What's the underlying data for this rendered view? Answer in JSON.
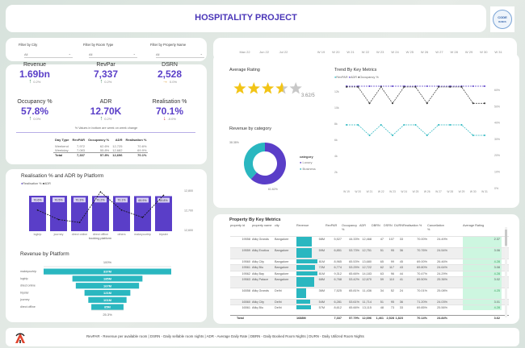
{
  "header": {
    "title": "HOSPITALITY PROJECT",
    "logo_text": "CODE BASICS"
  },
  "filters": [
    {
      "label": "Filter by City",
      "value": "All"
    },
    {
      "label": "Filter by Room Type",
      "value": "All"
    },
    {
      "label": "Filter by Property Name",
      "value": "All"
    }
  ],
  "date_slicer": {
    "months": [
      "May 22",
      "Jun 22",
      "Jul 22"
    ],
    "weeks": [
      "W 19",
      "W 20",
      "W 21",
      "W 22",
      "W 23",
      "W 24",
      "W 25",
      "W 26",
      "W 27",
      "W 28",
      "W 29",
      "W 30",
      "W 31"
    ]
  },
  "kpis": [
    {
      "label": "Revenue",
      "value": "1.69bn",
      "change": "0.2%",
      "trend": "up"
    },
    {
      "label": "RevPar",
      "value": "7,337",
      "change": "0.2%",
      "trend": "up"
    },
    {
      "label": "DSRN",
      "value": "2,528",
      "change": "0.0%",
      "trend": "flat"
    },
    {
      "label": "Occupancy %",
      "value": "57.8%",
      "change": "0.0%",
      "trend": "up"
    },
    {
      "label": "ADR",
      "value": "12.70K",
      "change": "0.2%",
      "trend": "up"
    },
    {
      "label": "Realisation %",
      "value": "70.1%",
      "change": "-0.0%",
      "trend": "down"
    }
  ],
  "kpi_note": "% Values in bottom are week on week change",
  "day_type_table": {
    "headers": [
      "Day Type",
      "RevPAR",
      "Occupancy %",
      "ADR",
      "Realisation %"
    ],
    "rows": [
      [
        "Weekend",
        "7,972",
        "62.6%",
        "12,725",
        "70.6%"
      ],
      [
        "Weekday",
        "7,083",
        "55.8%",
        "12,682",
        "69.9%"
      ]
    ],
    "total": [
      "Total",
      "7,337",
      "57.8%",
      "12,696",
      "70.1%"
    ]
  },
  "colors": {
    "purple": "#5a3ec8",
    "teal": "#2ab7c0",
    "dark": "#333333",
    "up": "#2e7d4f",
    "flat": "#d9941e",
    "down": "#d32f2f",
    "rating_bg": "#cdf6e0"
  },
  "chart_data": [
    {
      "type": "bar",
      "title": "Realisation % and ADR by Platform",
      "xlabel": "booking platform",
      "categories": [
        "logtrip",
        "journey",
        "direct online",
        "direct offline",
        "others",
        "makeyourtrip",
        "tripster"
      ],
      "series": [
        {
          "name": "Realisation %",
          "values": [
            70.6,
            70.5,
            70.3,
            70.2,
            70.1,
            69.9,
            69.8
          ],
          "labels": [
            "70.6%",
            "70.5%",
            "70.3%",
            "70.2%",
            "70.1%",
            "69.9%",
            "69.8%"
          ]
        },
        {
          "name": "ADR",
          "type": "line",
          "axis": "right",
          "values": [
            12703,
            12655,
            12640,
            12795,
            12703,
            12666,
            12778
          ]
        }
      ],
      "right_axis": {
        "ticks": [
          "12,800",
          "12,700",
          "12,600"
        ],
        "range": [
          12600,
          12800
        ]
      },
      "legend": "top-left"
    },
    {
      "type": "funnel",
      "title": "Revenue by Platform",
      "categories": [
        "makeyourtrip",
        "logtrip",
        "direct online",
        "tripster",
        "journey",
        "direct offline"
      ],
      "values": [
        337,
        185,
        167,
        121,
        101,
        85
      ],
      "labels": [
        "337M",
        "185M",
        "167M",
        "121M",
        "101M",
        "85M"
      ],
      "top_label": "100%",
      "bottom_label": "25.3%"
    },
    {
      "type": "pie",
      "title": "Revenue by category",
      "legend_title": "category",
      "donut": true,
      "series": [
        {
          "name": "Luxury",
          "value": 61.62,
          "label": "61.62%"
        },
        {
          "name": "Business",
          "value": 38.38,
          "label": "38.38%"
        }
      ],
      "legend": "right"
    },
    {
      "type": "line",
      "title": "Trend By Key Metrics",
      "x": [
        "W 19",
        "W 20",
        "W 21",
        "W 22",
        "W 23",
        "W 24",
        "W 25",
        "W 26",
        "W 27",
        "W 28",
        "W 29",
        "W 30",
        "W 31"
      ],
      "series": [
        {
          "name": "RevPAR",
          "axis": "left",
          "values": [
            7900,
            7900,
            6600,
            7900,
            6600,
            7900,
            7900,
            6600,
            7900,
            7900,
            7900,
            6600,
            6600
          ]
        },
        {
          "name": "ADR",
          "axis": "left",
          "values": [
            12700,
            12700,
            12700,
            12700,
            12700,
            12700,
            12700,
            12700,
            12700,
            12700,
            12700,
            12700,
            12700
          ]
        },
        {
          "name": "Occupancy %",
          "axis": "right",
          "values": [
            62,
            62,
            52,
            62,
            52,
            62,
            62,
            52,
            62,
            62,
            62,
            52,
            52
          ]
        }
      ],
      "left_axis": {
        "ticks": [
          "12k",
          "10k",
          "8k",
          "6k",
          "4k",
          "2k"
        ],
        "range": [
          0,
          14000
        ]
      },
      "right_axis": {
        "ticks": [
          "60%",
          "50%",
          "40%",
          "30%",
          "20%",
          "10%",
          "0%"
        ],
        "range": [
          0,
          60
        ]
      },
      "legend": "top-left"
    }
  ],
  "rating": {
    "title": "Average Rating",
    "value": 3.62,
    "text": "3.62/5",
    "max": 5
  },
  "property_table": {
    "title": "Property By Key Metrics",
    "headers": [
      "property id",
      "property name",
      "city",
      "Revenue",
      "RevPAR",
      "Occupancy %",
      "ADR",
      "DBRN",
      "DSRN",
      "DURN",
      "Realisation %",
      "Cancellation %",
      "Average Rating"
    ],
    "rows": [
      [
        "19558",
        "Atliq Grands",
        "Bangalore",
        "58M",
        "5,527",
        "44.33%",
        "12,468",
        "47",
        "107",
        "33",
        "70.00%",
        "24.49%",
        "2.37"
      ],
      [
        "19559",
        "Atliq Exotica",
        "Bangalore",
        "59M",
        "6,851",
        "53.73%",
        "12,751",
        "51",
        "95",
        "36",
        "70.76%",
        "24.54%",
        "3.06"
      ],
      [
        "19560",
        "Atliq City",
        "Bangalore",
        "81M",
        "8,965",
        "65.53%",
        "13,680",
        "65",
        "99",
        "45",
        "69.00%",
        "26.46%",
        "4.28"
      ],
      [
        "19561",
        "Atliq Blu",
        "Bangalore",
        "72M",
        "6,774",
        "53.25%",
        "12,722",
        "62",
        "117",
        "43",
        "69.80%",
        "24.64%",
        "3.08"
      ],
      [
        "19562",
        "Atliq Bay",
        "Bangalore",
        "81M",
        "9,312",
        "65.66%",
        "14,183",
        "63",
        "96",
        "44",
        "70.47%",
        "24.29%",
        "4.28"
      ],
      [
        "19563",
        "Atliq Palace",
        "Bangalore",
        "68M",
        "6,768",
        "53.42%",
        "12,670",
        "59",
        "110",
        "41",
        "69.50%",
        "25.36%",
        "3.02"
      ],
      [
        "16558",
        "Atliq Grands",
        "Delhi",
        "36M",
        "7,525",
        "65.81%",
        "11,436",
        "34",
        "52",
        "24",
        "70.01%",
        "25.08%",
        "4.25"
      ],
      [
        "16560",
        "Atliq City",
        "Delhi",
        "54M",
        "6,281",
        "53.61%",
        "11,714",
        "51",
        "95",
        "36",
        "71.20%",
        "24.03%",
        "3.01"
      ],
      [
        "16561",
        "Atliq Blu",
        "Delhi",
        "57M",
        "8,612",
        "65.66%",
        "13,115",
        "48",
        "73",
        "33",
        "69.85%",
        "25.56%",
        "4.28"
      ]
    ],
    "total": [
      "Total",
      "",
      "",
      "1688M",
      "7,337",
      "57.79%",
      "12,696",
      "1,461",
      "2,528",
      "1,823",
      "70.14%",
      "24.84%",
      "3.62"
    ]
  },
  "footer": {
    "text": "RevPAR - Revenue per available room | DSRN - Daily sellable room nights | ADR - Average Daily Rate | DBRN - Daily Booked Room Nights | DURN - Daily Utilized Room Nights"
  }
}
